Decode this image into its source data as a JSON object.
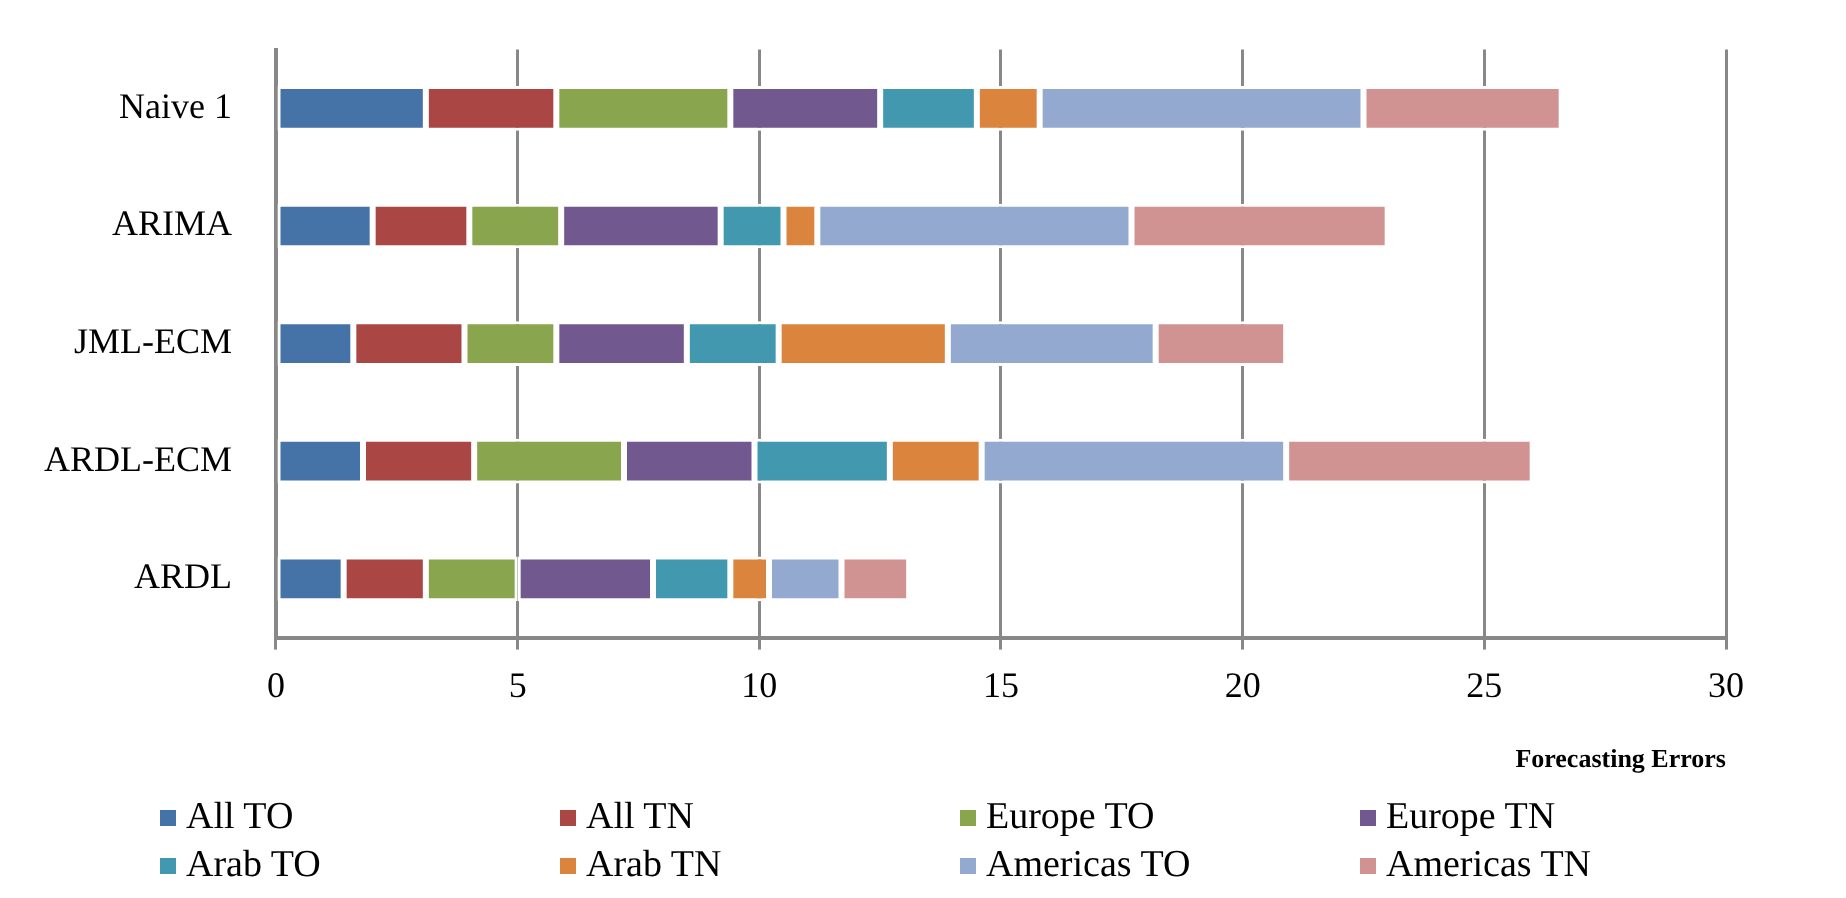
{
  "chart_data": {
    "type": "bar",
    "orientation": "horizontal",
    "stacked": true,
    "xlabel": "Forecasting Errors",
    "categories": [
      "Naive 1",
      "ARIMA",
      "JML-ECM",
      "ARDL-ECM",
      "ARDL"
    ],
    "series": [
      {
        "name": "All TO",
        "color": "#4572a7",
        "values": [
          3.1,
          2.0,
          1.6,
          1.8,
          1.4
        ]
      },
      {
        "name": "All TN",
        "color": "#aa4643",
        "values": [
          2.7,
          2.0,
          2.3,
          2.3,
          1.7
        ]
      },
      {
        "name": "Europe TO",
        "color": "#89a54e",
        "values": [
          3.6,
          1.9,
          1.9,
          3.1,
          1.9
        ]
      },
      {
        "name": "Europe TN",
        "color": "#71588f",
        "values": [
          3.1,
          3.3,
          2.7,
          2.7,
          2.8
        ]
      },
      {
        "name": "Arab TO",
        "color": "#4198af",
        "values": [
          2.0,
          1.3,
          1.9,
          2.8,
          1.6
        ]
      },
      {
        "name": "Arab TN",
        "color": "#db843d",
        "values": [
          1.3,
          0.7,
          3.5,
          1.9,
          0.8
        ]
      },
      {
        "name": "Americas TO",
        "color": "#93a9cf",
        "values": [
          6.7,
          6.5,
          4.3,
          6.3,
          1.5
        ]
      },
      {
        "name": "Americas TN",
        "color": "#d19392",
        "values": [
          4.1,
          5.3,
          2.7,
          5.1,
          1.4
        ]
      }
    ],
    "xlim": [
      0,
      30
    ],
    "xticks": [
      0,
      5,
      10,
      15,
      20,
      25,
      30
    ],
    "grid": "x",
    "legend": "bottom"
  }
}
